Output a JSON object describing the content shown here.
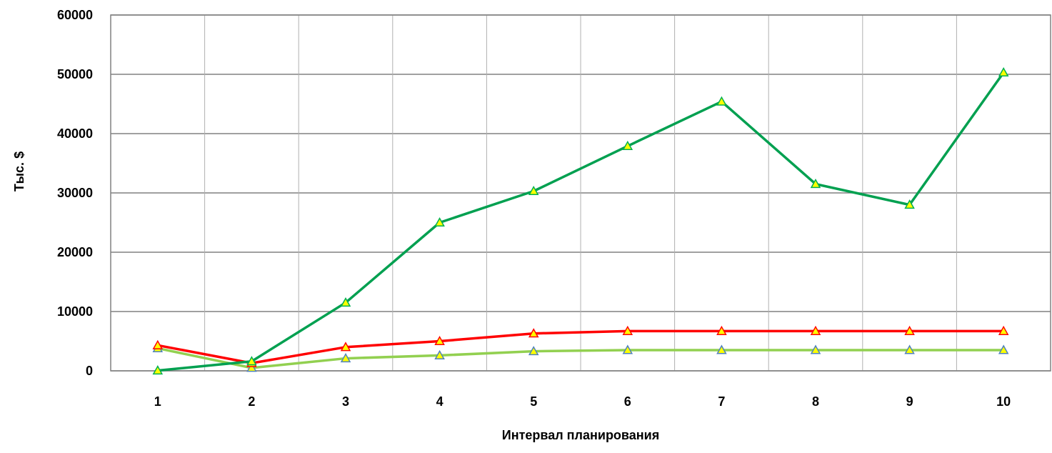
{
  "chart_data": {
    "type": "line",
    "title": "",
    "xlabel": "Интервал планирования",
    "ylabel": "Тыс. $",
    "categories": [
      "1",
      "2",
      "3",
      "4",
      "5",
      "6",
      "7",
      "8",
      "9",
      "10"
    ],
    "x_tick_labels": [
      "1",
      "2",
      "3",
      "4",
      "5",
      "6",
      "7",
      "8",
      "9",
      "10"
    ],
    "y_tick_labels": [
      "0",
      "10000",
      "20000",
      "30000",
      "40000",
      "50000",
      "60000"
    ],
    "ylim": [
      0,
      60000
    ],
    "y_tick_step": 10000,
    "grid": true,
    "legend": "none",
    "series": [
      {
        "values": [
          50,
          1600,
          11500,
          25000,
          30300,
          37900,
          45400,
          31500,
          28000,
          50300
        ],
        "color": "#00A050",
        "marker": "triangle",
        "marker_fill": "#FFFF00",
        "marker_stroke": "#00B050"
      },
      {
        "values": [
          4300,
          1300,
          4000,
          5000,
          6300,
          6700,
          6700,
          6700,
          6700,
          6700
        ],
        "color": "#FF0000",
        "marker": "triangle",
        "marker_fill": "#FFFF00",
        "marker_stroke": "#FF0000"
      },
      {
        "values": [
          3800,
          500,
          2100,
          2600,
          3300,
          3500,
          3500,
          3500,
          3500,
          3500
        ],
        "color": "#92D050",
        "marker": "triangle",
        "marker_fill": "#FFFF00",
        "marker_stroke": "#4F81BD"
      }
    ]
  }
}
